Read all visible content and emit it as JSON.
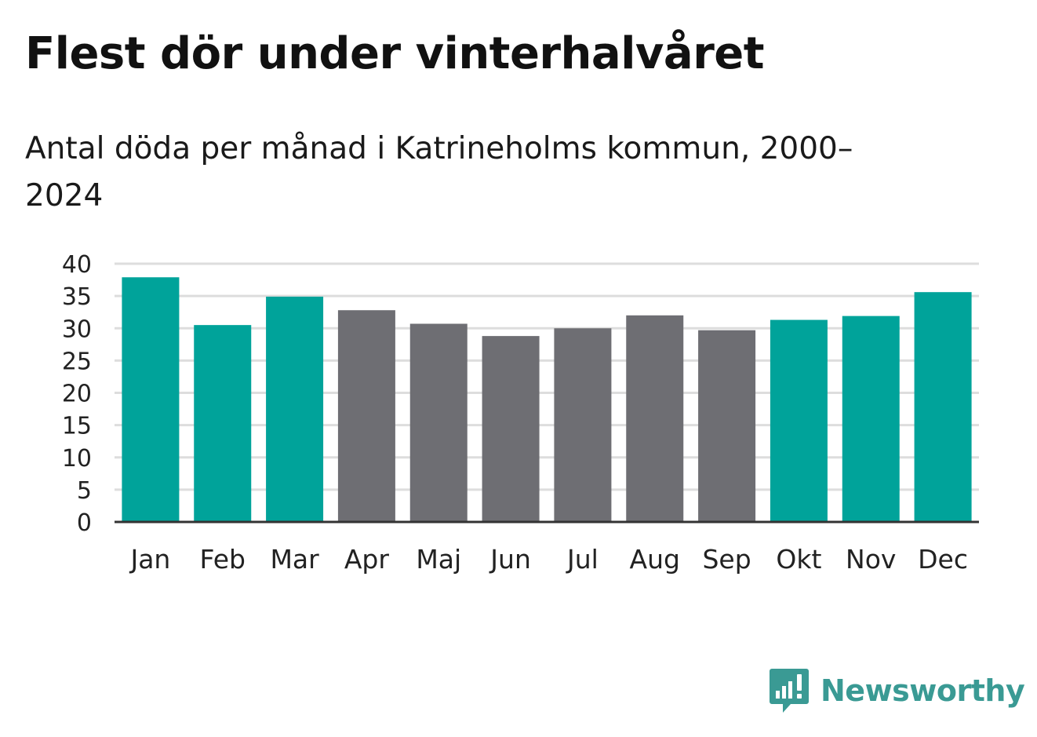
{
  "chart_data": {
    "type": "bar",
    "title": "Flest dör under vinterhalvåret",
    "subtitle": "Antal döda per månad i Katrineholms kommun, 2000–2024",
    "xlabel": "",
    "ylabel": "",
    "ylim": [
      0,
      40
    ],
    "yticks": [
      0,
      5,
      10,
      15,
      20,
      25,
      30,
      35,
      40
    ],
    "grid": true,
    "categories": [
      "Jan",
      "Feb",
      "Mar",
      "Apr",
      "Maj",
      "Jun",
      "Jul",
      "Aug",
      "Sep",
      "Okt",
      "Nov",
      "Dec"
    ],
    "values": [
      37.9,
      30.5,
      34.9,
      32.8,
      30.7,
      28.8,
      30.0,
      32.0,
      29.7,
      31.3,
      31.9,
      35.6
    ],
    "highlight": [
      true,
      true,
      true,
      false,
      false,
      false,
      false,
      false,
      false,
      true,
      true,
      true
    ],
    "colors": {
      "highlight": "#00a39a",
      "default": "#6e6e73",
      "grid": "#dddddd",
      "axis": "#333333"
    }
  },
  "brand": {
    "name": "Newsworthy",
    "icon": "newsworthy-logo-icon",
    "color": "#3a9a94"
  }
}
